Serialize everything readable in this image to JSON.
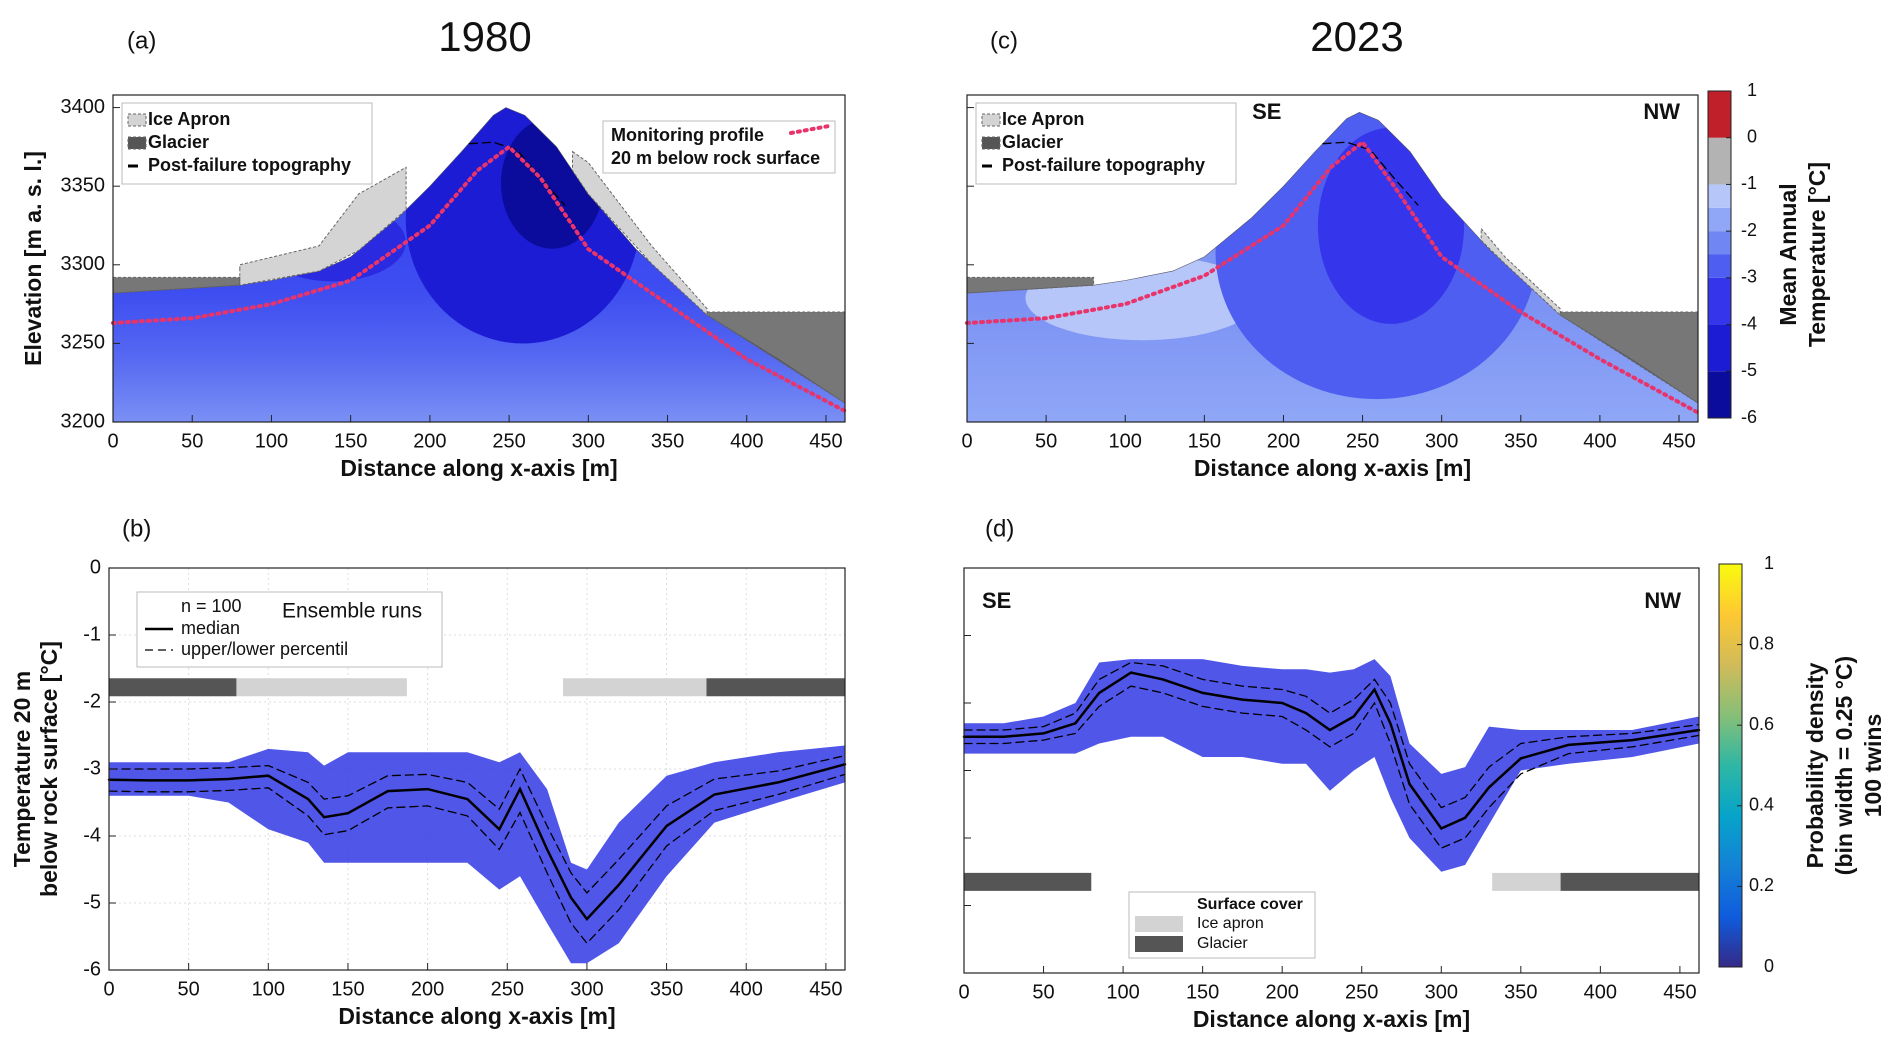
{
  "chart_data": [
    {
      "type": "section",
      "panel": "(a)",
      "title": "1980",
      "xlabel": "Distance along x-axis [m]",
      "ylabel": "Elevation [m a. s. l.]",
      "xlim": [
        0,
        462
      ],
      "xticks": [
        0,
        50,
        100,
        150,
        200,
        250,
        300,
        350,
        400,
        450
      ],
      "ylim": [
        3200,
        3408
      ],
      "yticks": [
        3200,
        3250,
        3300,
        3350,
        3400
      ],
      "topography": {
        "x": [
          0,
          80,
          100,
          130,
          150,
          180,
          200,
          220,
          240,
          248,
          260,
          280,
          300,
          330,
          375,
          420,
          462
        ],
        "y": [
          3282,
          3287,
          3290,
          3296,
          3305,
          3330,
          3350,
          3372,
          3395,
          3400,
          3395,
          3375,
          3345,
          3310,
          3268,
          3240,
          3212
        ]
      },
      "covers": [
        {
          "name": "Ice Apron",
          "color": "#d4d4d4",
          "parts": [
            {
              "x": [
                80,
                80,
                130,
                155,
                185
              ],
              "y": [
                3297,
                3300,
                3312,
                3345,
                3362
              ]
            },
            {
              "x": [
                290,
                300,
                340,
                375
              ],
              "y": [
                3372,
                3365,
                3312,
                3272
              ]
            }
          ]
        },
        {
          "name": "Glacier",
          "color": "#555555",
          "parts": [
            {
              "x": [
                0,
                80
              ],
              "y": [
                3292,
                3292
              ]
            },
            {
              "x": [
                375,
                462
              ],
              "y": [
                3270,
                3270
              ]
            }
          ]
        }
      ],
      "series": [
        {
          "name": "Post-failure topography",
          "color": "#000000",
          "style": "dashed",
          "x": [
            225,
            240,
            255,
            270,
            285
          ],
          "values": [
            3377,
            3378,
            3373,
            3355,
            3338
          ]
        },
        {
          "name": "Monitoring profile",
          "note": "20 m below rock surface",
          "color": "#e8336b",
          "style": "dotted",
          "x": [
            0,
            50,
            100,
            150,
            200,
            230,
            250,
            270,
            300,
            350,
            400,
            462
          ],
          "values": [
            3263,
            3266,
            3275,
            3290,
            3325,
            3360,
            3375,
            3355,
            3310,
            3275,
            3240,
            3207
          ]
        }
      ]
    },
    {
      "type": "line",
      "panel": "(b)",
      "xlabel": "Distance along x-axis [m]",
      "ylabel": [
        "Temperature 20 m",
        "below rock surface [°C]"
      ],
      "xlim": [
        0,
        462
      ],
      "xticks": [
        0,
        50,
        100,
        150,
        200,
        250,
        300,
        350,
        400,
        450
      ],
      "ylim": [
        -6,
        0
      ],
      "yticks": [
        -6,
        -5,
        -4,
        -3,
        -2,
        -1,
        0
      ],
      "grid": true,
      "legend_note": "n = 100",
      "legend_title": "Ensemble runs",
      "x": [
        0,
        25,
        50,
        75,
        100,
        125,
        135,
        150,
        175,
        200,
        225,
        245,
        258,
        275,
        290,
        300,
        320,
        350,
        380,
        420,
        462
      ],
      "envelope": {
        "color": "#3d44e6",
        "upper": [
          -2.9,
          -2.9,
          -2.9,
          -2.9,
          -2.7,
          -2.75,
          -2.95,
          -2.75,
          -2.75,
          -2.75,
          -2.75,
          -2.9,
          -2.75,
          -3.3,
          -4.4,
          -4.5,
          -3.8,
          -3.1,
          -2.9,
          -2.75,
          -2.65
        ],
        "lower": [
          -3.4,
          -3.4,
          -3.4,
          -3.5,
          -3.9,
          -4.1,
          -4.4,
          -4.4,
          -4.4,
          -4.4,
          -4.4,
          -4.8,
          -4.6,
          -5.3,
          -5.9,
          -5.9,
          -5.6,
          -4.6,
          -3.8,
          -3.5,
          -3.2
        ]
      },
      "series": [
        {
          "name": "median",
          "color": "#000000",
          "style": "solid",
          "values": [
            -3.16,
            -3.17,
            -3.17,
            -3.15,
            -3.1,
            -3.45,
            -3.72,
            -3.66,
            -3.33,
            -3.3,
            -3.45,
            -3.9,
            -3.3,
            -4.2,
            -4.92,
            -5.24,
            -4.73,
            -3.85,
            -3.38,
            -3.2,
            -2.93
          ]
        },
        {
          "name": "upper/lower percentil",
          "color": "#000000",
          "style": "dashed",
          "values": [
            -3.0,
            -3.0,
            -3.0,
            -2.98,
            -2.95,
            -3.2,
            -3.45,
            -3.4,
            -3.1,
            -3.08,
            -3.2,
            -3.6,
            -3.0,
            -3.85,
            -4.55,
            -4.85,
            -4.35,
            -3.55,
            -3.15,
            -3.03,
            -2.8
          ]
        },
        {
          "color": "#000000",
          "style": "dashed",
          "values": [
            -3.33,
            -3.34,
            -3.34,
            -3.32,
            -3.28,
            -3.7,
            -3.98,
            -3.92,
            -3.58,
            -3.55,
            -3.7,
            -4.2,
            -3.65,
            -4.55,
            -5.3,
            -5.6,
            -5.1,
            -4.15,
            -3.62,
            -3.38,
            -3.08
          ]
        }
      ],
      "cover_level": -1.78,
      "covers": [
        {
          "color": "#555555",
          "spans": [
            [
              0,
              80
            ],
            [
              375,
              462
            ]
          ]
        },
        {
          "color": "#d3d3d3",
          "spans": [
            [
              80,
              187
            ],
            [
              285,
              375
            ]
          ]
        }
      ]
    },
    {
      "type": "section",
      "panel": "(c)",
      "title": "2023",
      "xlabel": "Distance along x-axis [m]",
      "ytick_labels": false,
      "xlim": [
        0,
        462
      ],
      "xticks": [
        0,
        50,
        100,
        150,
        200,
        250,
        300,
        350,
        400,
        450
      ],
      "ylim": [
        3200,
        3408
      ],
      "yticks": [
        3200,
        3250,
        3300,
        3350,
        3400
      ],
      "annotations": [
        {
          "text": "SE",
          "position": "top-left"
        },
        {
          "text": "NW",
          "position": "top-right"
        }
      ],
      "topography": {
        "x": [
          0,
          80,
          100,
          130,
          150,
          180,
          200,
          220,
          240,
          248,
          260,
          280,
          300,
          330,
          375,
          420,
          462
        ],
        "y": [
          3282,
          3287,
          3290,
          3296,
          3305,
          3330,
          3350,
          3372,
          3393,
          3397,
          3392,
          3372,
          3343,
          3310,
          3268,
          3240,
          3212
        ]
      },
      "covers": [
        {
          "name": "Ice Apron",
          "color": "#d4d4d4",
          "parts": [
            {
              "x": [
                325,
                340,
                375
              ],
              "y": [
                3323,
                3305,
                3272
              ]
            }
          ]
        },
        {
          "name": "Glacier",
          "color": "#555555",
          "parts": [
            {
              "x": [
                0,
                80
              ],
              "y": [
                3292,
                3292
              ]
            },
            {
              "x": [
                375,
                462
              ],
              "y": [
                3270,
                3270
              ]
            }
          ]
        }
      ],
      "series": [
        {
          "name": "Post-failure topography",
          "color": "#000000",
          "style": "dashed",
          "x": [
            225,
            240,
            255,
            270,
            285
          ],
          "values": [
            3377,
            3378,
            3373,
            3355,
            3338
          ]
        },
        {
          "color": "#e8336b",
          "style": "dotted",
          "x": [
            0,
            50,
            100,
            150,
            200,
            230,
            250,
            270,
            300,
            350,
            400,
            462
          ],
          "values": [
            3263,
            3266,
            3275,
            3293,
            3325,
            3362,
            3378,
            3350,
            3305,
            3270,
            3240,
            3206
          ]
        }
      ],
      "colorbar": {
        "label": [
          "Mean Annual",
          "Temperature [°C]"
        ],
        "levels": [
          -6,
          -5,
          -4,
          -3,
          -2.5,
          -2,
          -1.5,
          -1,
          0,
          1
        ],
        "colors": [
          "#0b0b9c",
          "#1c1cd4",
          "#3535ec",
          "#4d5ef0",
          "#6f86f3",
          "#8fa7f6",
          "#b6c6f8",
          "#b3b3b3",
          "#c0202a"
        ],
        "ticks": [
          -6,
          -5,
          -4,
          -3,
          -2,
          -1,
          0,
          1
        ]
      }
    },
    {
      "type": "line",
      "panel": "(d)",
      "xlabel": "Distance along x-axis [m]",
      "ytick_labels": false,
      "xlim": [
        0,
        462
      ],
      "xticks": [
        0,
        50,
        100,
        150,
        200,
        250,
        300,
        350,
        400,
        450
      ],
      "ylim": [
        -6,
        0
      ],
      "yticks": [
        -6,
        -5,
        -4,
        -3,
        -2,
        -1,
        0
      ],
      "grid": false,
      "annotations": [
        {
          "text": "SE",
          "position": "top-left"
        },
        {
          "text": "NW",
          "position": "top-right"
        }
      ],
      "x": [
        0,
        25,
        50,
        70,
        85,
        105,
        125,
        150,
        175,
        200,
        215,
        230,
        245,
        258,
        268,
        280,
        300,
        315,
        330,
        350,
        380,
        420,
        462
      ],
      "envelope": {
        "color": "#3d44e6",
        "upper": [
          -2.3,
          -2.3,
          -2.2,
          -2.0,
          -1.4,
          -1.35,
          -1.35,
          -1.35,
          -1.45,
          -1.5,
          -1.5,
          -1.55,
          -1.5,
          -1.35,
          -1.6,
          -2.6,
          -3.05,
          -2.95,
          -2.35,
          -2.4,
          -2.4,
          -2.4,
          -2.2
        ],
        "lower": [
          -2.75,
          -2.75,
          -2.75,
          -2.75,
          -2.6,
          -2.5,
          -2.5,
          -2.8,
          -2.8,
          -2.9,
          -2.9,
          -3.3,
          -3.0,
          -2.8,
          -3.4,
          -4.0,
          -4.5,
          -4.4,
          -3.8,
          -3.0,
          -2.9,
          -2.8,
          -2.6
        ]
      },
      "series": [
        {
          "color": "#000000",
          "style": "solid",
          "values": [
            -2.5,
            -2.5,
            -2.45,
            -2.3,
            -1.85,
            -1.55,
            -1.65,
            -1.85,
            -1.95,
            -2.0,
            -2.15,
            -2.4,
            -2.2,
            -1.8,
            -2.3,
            -3.2,
            -3.86,
            -3.7,
            -3.25,
            -2.82,
            -2.62,
            -2.55,
            -2.4
          ]
        },
        {
          "color": "#000000",
          "style": "dashed",
          "values": [
            -2.4,
            -2.4,
            -2.35,
            -2.15,
            -1.65,
            -1.4,
            -1.45,
            -1.65,
            -1.75,
            -1.8,
            -1.9,
            -2.15,
            -1.95,
            -1.65,
            -2.0,
            -2.9,
            -3.55,
            -3.4,
            -2.95,
            -2.6,
            -2.5,
            -2.45,
            -2.32
          ]
        },
        {
          "color": "#000000",
          "style": "dashed",
          "values": [
            -2.6,
            -2.6,
            -2.55,
            -2.45,
            -2.05,
            -1.75,
            -1.85,
            -2.05,
            -2.15,
            -2.2,
            -2.4,
            -2.65,
            -2.45,
            -2.0,
            -2.6,
            -3.5,
            -4.15,
            -4.0,
            -3.55,
            -3.05,
            -2.75,
            -2.65,
            -2.48
          ]
        }
      ],
      "cover_level": -4.65,
      "cover_legend_title": "Surface cover",
      "covers": [
        {
          "name": "Ice apron",
          "color": "#d3d3d3",
          "spans": [
            [
              332,
              375
            ]
          ]
        },
        {
          "name": "Glacier",
          "color": "#555555",
          "spans": [
            [
              0,
              80
            ],
            [
              375,
              462
            ]
          ]
        }
      ],
      "colorbar": {
        "label": [
          "Probability density",
          "(bin width = 0.25 °C)",
          "100 twins"
        ],
        "zlim": [
          0,
          1
        ],
        "ticks": [
          0,
          0.2,
          0.4,
          0.6,
          0.8,
          1
        ],
        "colormap": [
          "#352a87",
          "#0f5cdd",
          "#1481d6",
          "#06a4ca",
          "#2eb7a4",
          "#87bf77",
          "#d1bb59",
          "#fec832",
          "#f9fb0e"
        ]
      }
    }
  ]
}
